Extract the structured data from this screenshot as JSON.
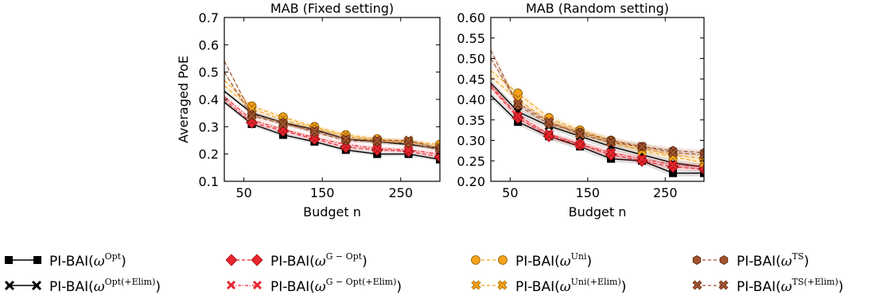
{
  "colors": {
    "opt": "#000000",
    "gopt": "#e8252d",
    "uni": "#f5a21a",
    "ts": "#a0522d"
  },
  "chart_data": [
    {
      "type": "line",
      "title": "MAB (Fixed setting)",
      "xlabel": "Budget n",
      "ylabel": "Averaged PoE",
      "xlim": [
        25,
        300
      ],
      "ylim": [
        0.1,
        0.7
      ],
      "xticks": [
        50,
        150,
        250
      ],
      "yticks": [
        0.1,
        0.2,
        0.3,
        0.4,
        0.5,
        0.6,
        0.7
      ],
      "ytick_labels": [
        "0.1",
        "0.2",
        "0.3",
        "0.4",
        "0.5",
        "0.6",
        "0.7"
      ],
      "x": [
        25,
        60,
        100,
        140,
        180,
        220,
        260,
        300
      ],
      "series": [
        {
          "name": "PI-BAI(ω^Opt)",
          "color": "#000000",
          "marker": "square",
          "dash": "solid",
          "values": [
            0.39,
            0.31,
            0.27,
            0.245,
            0.215,
            0.2,
            0.2,
            0.18
          ]
        },
        {
          "name": "PI-BAI(ω^Opt(+Elim))",
          "color": "#000000",
          "marker": "x",
          "dash": "solid",
          "values": [
            0.43,
            0.35,
            0.315,
            0.29,
            0.255,
            0.245,
            0.235,
            0.22
          ]
        },
        {
          "name": "PI-BAI(ω^G−Opt)",
          "color": "#e8252d",
          "marker": "diamond",
          "dash": "dash",
          "values": [
            0.4,
            0.315,
            0.285,
            0.255,
            0.225,
            0.215,
            0.21,
            0.19
          ]
        },
        {
          "name": "PI-BAI(ω^G−Opt(+Elim))",
          "color": "#e8252d",
          "marker": "x",
          "dash": "dashdot",
          "values": [
            0.41,
            0.325,
            0.29,
            0.26,
            0.235,
            0.22,
            0.215,
            0.2
          ]
        },
        {
          "name": "PI-BAI(ω^Uni)",
          "color": "#f5a21a",
          "marker": "circle",
          "dash": "dash",
          "values": [
            0.47,
            0.375,
            0.335,
            0.3,
            0.27,
            0.255,
            0.245,
            0.235
          ]
        },
        {
          "name": "PI-BAI(ω^Uni(+Elim))",
          "color": "#f5a21a",
          "marker": "x",
          "dash": "dash",
          "values": [
            0.45,
            0.365,
            0.325,
            0.295,
            0.265,
            0.25,
            0.245,
            0.225
          ]
        },
        {
          "name": "PI-BAI(ω^TS)",
          "color": "#a0522d",
          "marker": "hexagon",
          "dash": "dash",
          "values": [
            0.54,
            0.345,
            0.315,
            0.28,
            0.25,
            0.245,
            0.24,
            0.215
          ]
        },
        {
          "name": "PI-BAI(ω^TS(+Elim))",
          "color": "#a0522d",
          "marker": "x",
          "dash": "dash",
          "values": [
            0.5,
            0.34,
            0.31,
            0.285,
            0.255,
            0.25,
            0.25,
            0.22
          ]
        }
      ]
    },
    {
      "type": "line",
      "title": "MAB (Random setting)",
      "xlabel": "Budget n",
      "ylabel": "",
      "xlim": [
        25,
        300
      ],
      "ylim": [
        0.2,
        0.6
      ],
      "xticks": [
        50,
        150,
        250
      ],
      "yticks": [
        0.2,
        0.25,
        0.3,
        0.35,
        0.4,
        0.45,
        0.5,
        0.55,
        0.6
      ],
      "ytick_labels": [
        "0.20",
        "0.25",
        "0.30",
        "0.35",
        "0.40",
        "0.45",
        "0.50",
        "0.55",
        "0.60"
      ],
      "x": [
        25,
        60,
        100,
        140,
        180,
        220,
        260,
        300
      ],
      "series": [
        {
          "name": "PI-BAI(ω^Opt)",
          "color": "#000000",
          "marker": "square",
          "dash": "solid",
          "values": [
            0.41,
            0.345,
            0.31,
            0.285,
            0.255,
            0.25,
            0.22,
            0.22
          ]
        },
        {
          "name": "PI-BAI(ω^Opt(+Elim))",
          "color": "#000000",
          "marker": "x",
          "dash": "solid",
          "values": [
            0.44,
            0.37,
            0.335,
            0.31,
            0.285,
            0.265,
            0.245,
            0.235
          ]
        },
        {
          "name": "PI-BAI(ω^G−Opt)",
          "color": "#e8252d",
          "marker": "diamond",
          "dash": "dash",
          "values": [
            0.43,
            0.355,
            0.31,
            0.29,
            0.265,
            0.25,
            0.235,
            0.23
          ]
        },
        {
          "name": "PI-BAI(ω^G−Opt(+Elim))",
          "color": "#e8252d",
          "marker": "x",
          "dash": "dashdot",
          "values": [
            0.435,
            0.36,
            0.315,
            0.29,
            0.27,
            0.255,
            0.24,
            0.235
          ]
        },
        {
          "name": "PI-BAI(ω^Uni)",
          "color": "#f5a21a",
          "marker": "circle",
          "dash": "dash",
          "values": [
            0.47,
            0.415,
            0.355,
            0.325,
            0.3,
            0.28,
            0.265,
            0.255
          ]
        },
        {
          "name": "PI-BAI(ω^Uni(+Elim))",
          "color": "#f5a21a",
          "marker": "x",
          "dash": "dash",
          "values": [
            0.455,
            0.4,
            0.345,
            0.32,
            0.295,
            0.275,
            0.26,
            0.245
          ]
        },
        {
          "name": "PI-BAI(ω^TS)",
          "color": "#a0522d",
          "marker": "hexagon",
          "dash": "dash",
          "values": [
            0.52,
            0.385,
            0.34,
            0.32,
            0.3,
            0.285,
            0.275,
            0.27
          ]
        },
        {
          "name": "PI-BAI(ω^TS(+Elim))",
          "color": "#a0522d",
          "marker": "x",
          "dash": "dash",
          "values": [
            0.5,
            0.39,
            0.345,
            0.315,
            0.295,
            0.285,
            0.27,
            0.265
          ]
        }
      ]
    }
  ],
  "legend": {
    "prefix": "PI-BAI(",
    "suffix": ")",
    "omega": "ω",
    "items": [
      {
        "sup": "Opt"
      },
      {
        "sup": "G − Opt"
      },
      {
        "sup": "Uni"
      },
      {
        "sup": "TS"
      },
      {
        "sup": "Opt(+Elim)"
      },
      {
        "sup": "G − Opt(+Elim)"
      },
      {
        "sup": "Uni(+Elim)"
      },
      {
        "sup": "TS(+Elim)"
      }
    ]
  }
}
